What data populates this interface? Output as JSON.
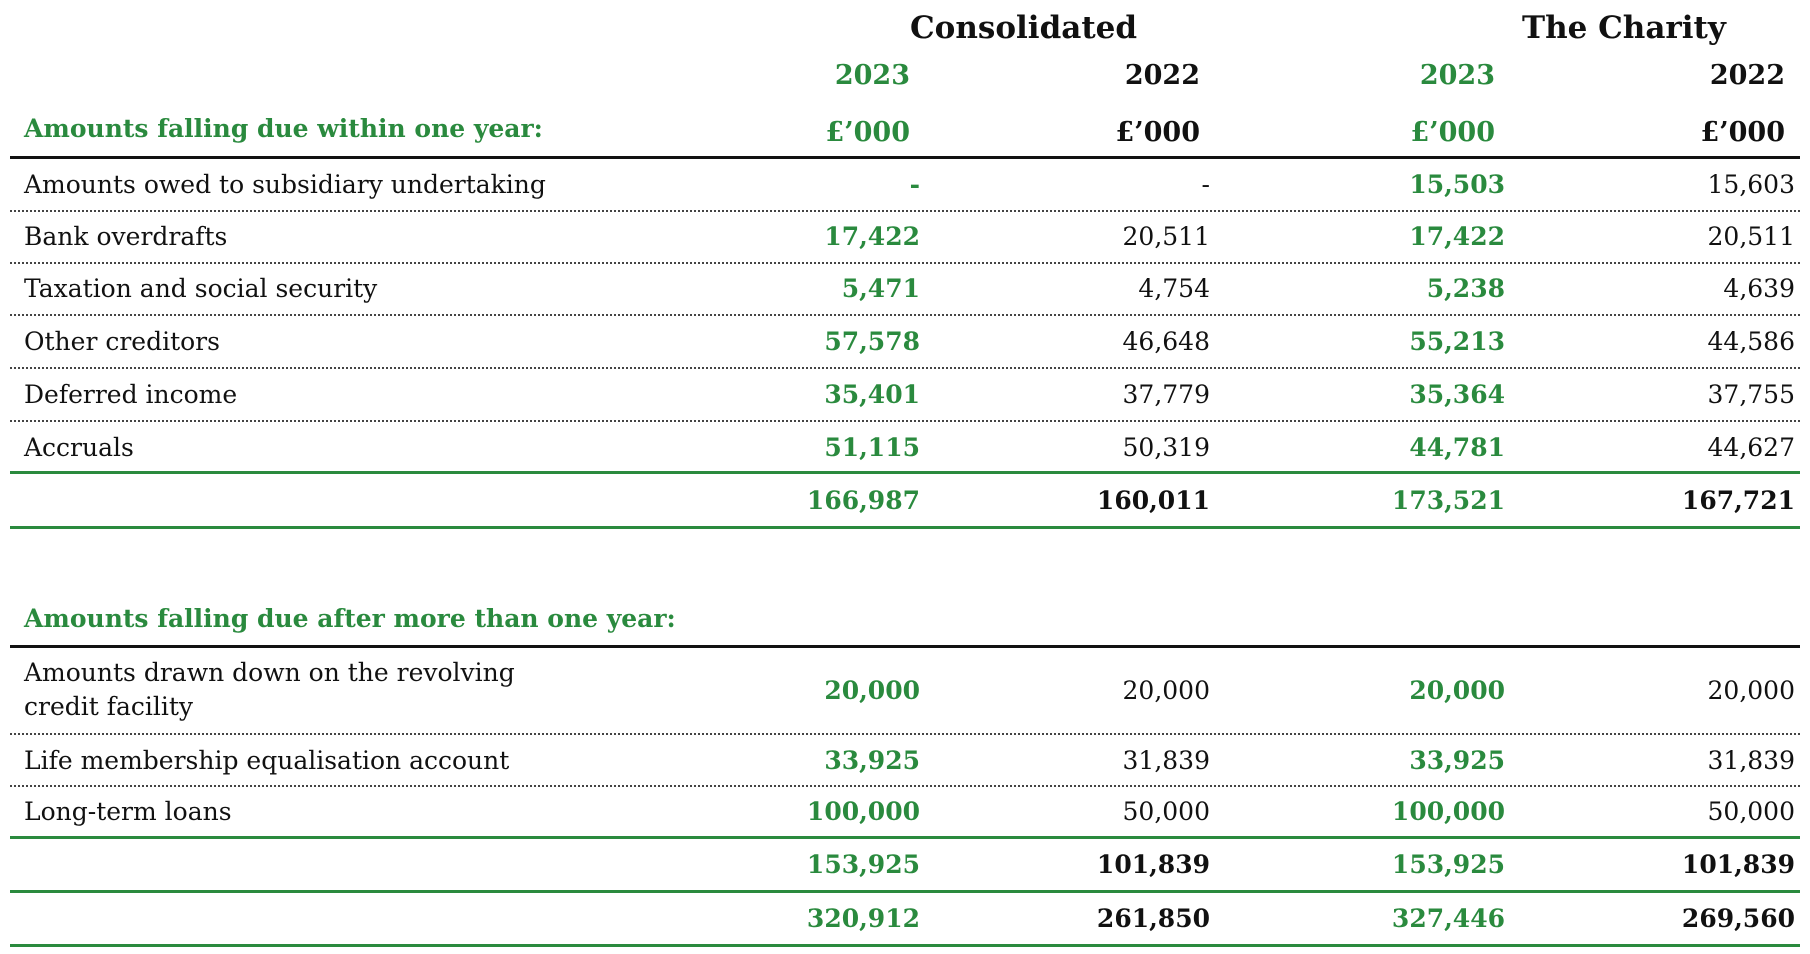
{
  "headers": {
    "consolidated": "Consolidated",
    "charity": "The Charity",
    "years": [
      "2023",
      "2022",
      "2023",
      "2022"
    ],
    "units": [
      "£’000",
      "£’000",
      "£’000",
      "£’000"
    ]
  },
  "within": {
    "title": "Amounts falling due within one year:",
    "rows": [
      {
        "label": "Amounts owed to subsidiary undertaking",
        "values": [
          "-",
          "-",
          "15,503",
          "15,603"
        ]
      },
      {
        "label": "Bank overdrafts",
        "values": [
          "17,422",
          "20,511",
          "17,422",
          "20,511"
        ]
      },
      {
        "label": "Taxation and social security",
        "values": [
          "5,471",
          "4,754",
          "5,238",
          "4,639"
        ]
      },
      {
        "label": "Other creditors",
        "values": [
          "57,578",
          "46,648",
          "55,213",
          "44,586"
        ]
      },
      {
        "label": "Deferred income",
        "values": [
          "35,401",
          "37,779",
          "35,364",
          "37,755"
        ]
      },
      {
        "label": "Accruals",
        "values": [
          "51,115",
          "50,319",
          "44,781",
          "44,627"
        ]
      }
    ],
    "total": [
      "166,987",
      "160,011",
      "173,521",
      "167,721"
    ]
  },
  "after": {
    "title": "Amounts falling due after more than one year:",
    "rows": [
      {
        "label": "Amounts drawn down on the revolving credit facility",
        "values": [
          "20,000",
          "20,000",
          "20,000",
          "20,000"
        ]
      },
      {
        "label": "Life membership equalisation account",
        "values": [
          "33,925",
          "31,839",
          "33,925",
          "31,839"
        ]
      },
      {
        "label": "Long-term loans",
        "values": [
          "100,000",
          "50,000",
          "100,000",
          "50,000"
        ]
      }
    ],
    "total": [
      "153,925",
      "101,839",
      "153,925",
      "101,839"
    ]
  },
  "grand_total": [
    "320,912",
    "261,850",
    "327,446",
    "269,560"
  ],
  "colors": {
    "accent_green": "#2a8a3e",
    "text": "#111111"
  }
}
